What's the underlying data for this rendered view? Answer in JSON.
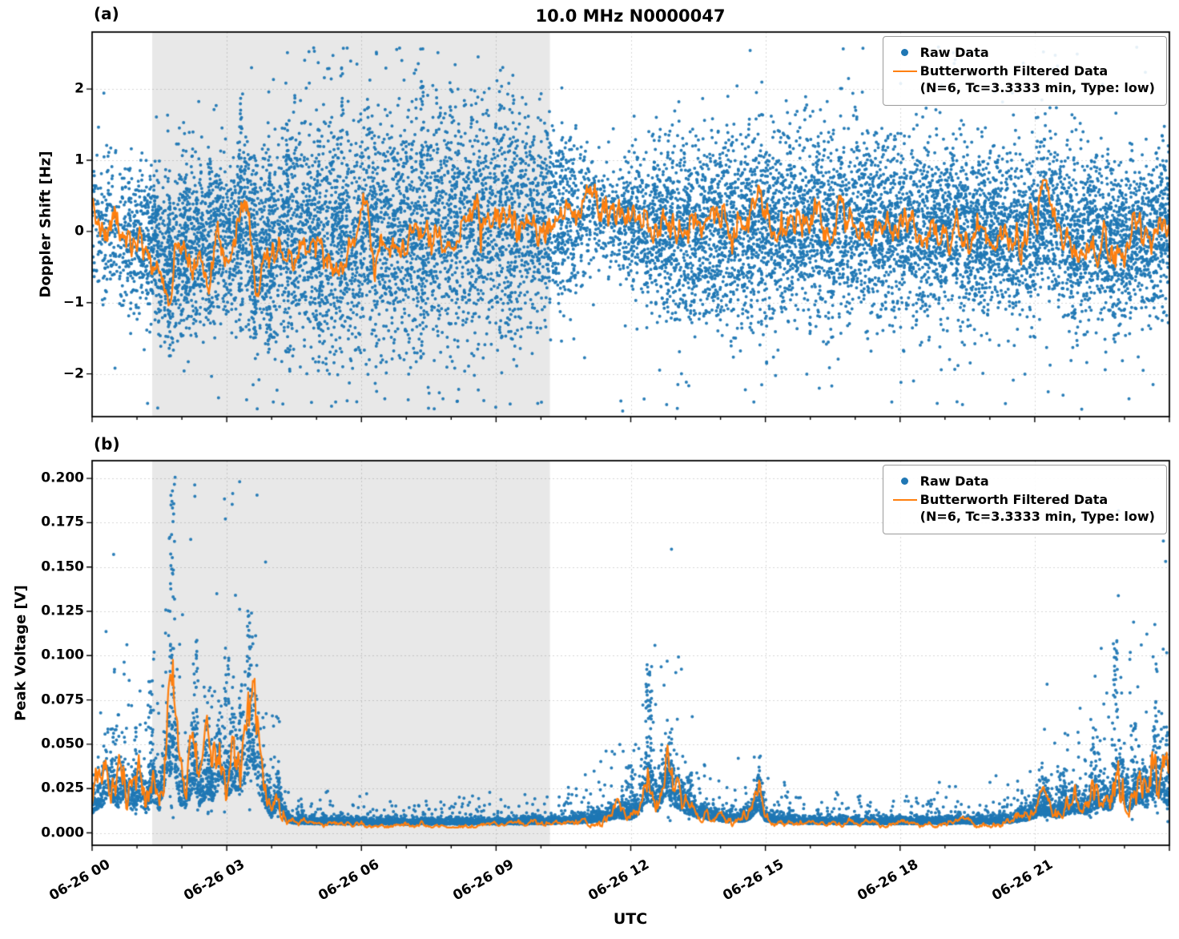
{
  "figure": {
    "title": "10.0 MHz N0000047",
    "xlabel": "UTC",
    "date": "06-26"
  },
  "legend": {
    "raw_label": "Raw Data",
    "filtered_label": "Butterworth Filtered Data",
    "filtered_sublabel": "(N=6, Tc=3.3333 min, Type: low)"
  },
  "colors": {
    "raw": "#1f77b4",
    "filtered": "#ff7f0e",
    "shade": "rgba(128,128,128,0.18)",
    "grid": "rgba(0,0,0,0.16)",
    "axis": "#000000"
  },
  "shade_region_hours": [
    1.34,
    10.2
  ],
  "xticks": {
    "hours": [
      0,
      3,
      6,
      9,
      12,
      15,
      18,
      21
    ],
    "labels": [
      "06-26 00",
      "06-26 03",
      "06-26 06",
      "06-26 09",
      "06-26 12",
      "06-26 15",
      "06-26 18",
      "06-26 21"
    ],
    "minor_step_hours": 1
  },
  "chart_data": [
    {
      "type": "scatter",
      "tag": "(a)",
      "title": "10.0 MHz N0000047",
      "ylabel": "Doppler Shift [Hz]",
      "xlabel": "UTC",
      "ylim": [
        -2.6,
        2.8
      ],
      "yticks": [
        -2,
        -1,
        0,
        1,
        2
      ],
      "ytick_labels": [
        "−2",
        "−1",
        "0",
        "1",
        "2"
      ],
      "xlim_hours": [
        0,
        24
      ],
      "legend_entries": [
        "Raw Data",
        "Butterworth Filtered Data (N=6, Tc=3.3333 min, Type: low)"
      ],
      "raw": {
        "name": "Raw Data",
        "count": 14000,
        "outlier_frac": 0.06,
        "center_scale": 0.5,
        "density": {
          "t": [
            0,
            0.5,
            1.0,
            1.5,
            2,
            3,
            4,
            5,
            8,
            10,
            10.8,
            11.3,
            12,
            12.5,
            24
          ],
          "v": [
            0.5,
            0.55,
            0.8,
            1,
            1,
            1,
            1,
            1,
            1,
            0.95,
            0.7,
            0.45,
            0.7,
            1,
            1
          ]
        },
        "spread": {
          "t": [
            0,
            0.8,
            1.5,
            2.2,
            3.0,
            3.6,
            4.2,
            5,
            6,
            7,
            8,
            9,
            10,
            10.7,
            11.2,
            11.7,
            12.2,
            13,
            14,
            15,
            16,
            17,
            18,
            19,
            20,
            21,
            22,
            23,
            24
          ],
          "v": [
            0.42,
            0.5,
            0.55,
            0.62,
            0.6,
            0.72,
            0.78,
            0.8,
            0.76,
            0.8,
            0.8,
            0.76,
            0.7,
            0.55,
            0.42,
            0.38,
            0.5,
            0.6,
            0.66,
            0.66,
            0.7,
            0.66,
            0.64,
            0.6,
            0.6,
            0.56,
            0.6,
            0.55,
            0.5
          ]
        },
        "streaks": [
          {
            "t": 1.72,
            "y0": -1.75,
            "y1": 0.4,
            "n": 45
          },
          {
            "t": 2.08,
            "y0": -1.3,
            "y1": 0.8,
            "n": 35
          },
          {
            "t": 2.62,
            "y0": -1.2,
            "y1": 1.1,
            "n": 35
          },
          {
            "t": 3.3,
            "y0": -1.4,
            "y1": 1.9,
            "n": 45
          },
          {
            "t": 3.62,
            "y0": -1.6,
            "y1": 0.9,
            "n": 40
          },
          {
            "t": 3.95,
            "y0": -1.8,
            "y1": 1.2,
            "n": 40
          },
          {
            "t": 4.35,
            "y0": -1.7,
            "y1": 1.5,
            "n": 35
          },
          {
            "t": 5.05,
            "y0": -1.9,
            "y1": 1.6,
            "n": 35
          },
          {
            "t": 5.55,
            "y0": -1.4,
            "y1": 2.3,
            "n": 30
          },
          {
            "t": 7.35,
            "y0": -1.9,
            "y1": 2.4,
            "n": 30
          },
          {
            "t": 8.0,
            "y0": -2.0,
            "y1": 2.2,
            "n": 25
          },
          {
            "t": 9.1,
            "y0": -1.6,
            "y1": 2.3,
            "n": 25
          }
        ],
        "extremes": [
          {
            "t": 11.78,
            "v": -2.38
          },
          {
            "t": 11.82,
            "v": -2.52
          },
          {
            "t": 7.32,
            "v": 2.56
          },
          {
            "t": 6.9,
            "v": 2.4
          },
          {
            "t": 8.6,
            "v": 2.45
          },
          {
            "t": 5.9,
            "v": 2.35
          },
          {
            "t": 13.05,
            "v": -2.15
          },
          {
            "t": 16.2,
            "v": -2.2
          },
          {
            "t": 21.3,
            "v": -2.25
          },
          {
            "t": 23.1,
            "v": -2.35
          },
          {
            "t": 14.8,
            "v": 1.95
          },
          {
            "t": 18.3,
            "v": -2.1
          }
        ]
      },
      "filtered": {
        "name": "Butterworth Filtered Data",
        "params": "(N=6, Tc=3.3333 min, Type: low)",
        "wiggle": 0.1,
        "t": [
          0,
          0.2,
          0.5,
          0.8,
          1.0,
          1.2,
          1.45,
          1.7,
          1.8,
          2.0,
          2.2,
          2.4,
          2.6,
          2.8,
          3.0,
          3.2,
          3.35,
          3.5,
          3.65,
          3.8,
          4.0,
          4.3,
          4.6,
          4.9,
          5.2,
          5.5,
          5.8,
          6.05,
          6.15,
          6.3,
          6.6,
          6.9,
          7.2,
          7.5,
          7.8,
          8.1,
          8.4,
          8.7,
          9.0,
          9.3,
          9.6,
          9.9,
          10.2,
          10.5,
          10.8,
          11.1,
          11.3,
          11.6,
          11.9,
          12.2,
          12.5,
          12.9,
          13.3,
          13.7,
          14.1,
          14.5,
          14.9,
          15.2,
          15.5,
          15.8,
          16.1,
          16.4,
          16.7,
          17.0,
          17.4,
          17.8,
          18.2,
          18.6,
          19.0,
          19.4,
          19.8,
          20.2,
          20.6,
          21.0,
          21.2,
          21.4,
          21.7,
          22.0,
          22.3,
          22.6,
          22.9,
          23.2,
          23.5,
          23.75,
          23.9,
          24
        ],
        "v": [
          0.15,
          -0.1,
          0.05,
          -0.2,
          -0.1,
          -0.35,
          -0.45,
          -1.0,
          -0.55,
          -0.3,
          -0.55,
          -0.25,
          -0.5,
          -0.2,
          -0.35,
          -0.1,
          0.35,
          0.25,
          -0.9,
          -0.4,
          -0.25,
          -0.15,
          -0.25,
          -0.15,
          -0.35,
          -0.2,
          -0.4,
          0.1,
          0.45,
          -0.25,
          -0.1,
          0.05,
          0.1,
          0.0,
          0.15,
          0.05,
          0.2,
          0.1,
          0.3,
          0.15,
          0.25,
          0.2,
          0.3,
          0.25,
          0.35,
          0.65,
          0.45,
          0.3,
          0.25,
          0.1,
          0.0,
          0.1,
          0.0,
          0.1,
          -0.05,
          0.05,
          0.25,
          0.1,
          0.3,
          0.15,
          0.25,
          0.1,
          0.2,
          0.1,
          0.15,
          0.05,
          0.1,
          0.0,
          0.1,
          0.05,
          -0.05,
          0.0,
          -0.1,
          0.0,
          0.55,
          0.25,
          -0.15,
          -0.35,
          -0.2,
          -0.4,
          -0.25,
          -0.1,
          -0.3,
          0.05,
          0.35,
          0.15
        ]
      }
    },
    {
      "type": "scatter",
      "tag": "(b)",
      "ylabel": "Peak Voltage [V]",
      "xlabel": "UTC",
      "ylim": [
        -0.007,
        0.21
      ],
      "yticks": [
        0,
        0.025,
        0.05,
        0.075,
        0.1,
        0.125,
        0.15,
        0.175,
        0.2
      ],
      "ytick_labels": [
        "0.000",
        "0.025",
        "0.050",
        "0.075",
        "0.100",
        "0.125",
        "0.150",
        "0.175",
        "0.200"
      ],
      "xlim_hours": [
        0,
        24
      ],
      "legend_entries": [
        "Raw Data",
        "Butterworth Filtered Data (N=6, Tc=3.3333 min, Type: low)"
      ],
      "raw": {
        "name": "Raw Data",
        "count": 9000,
        "clusters": [
          {
            "t": 1.8,
            "w": 0.1,
            "max": 0.202,
            "n": 18
          },
          {
            "t": 1.75,
            "w": 0.12,
            "max": 0.17,
            "n": 25
          },
          {
            "t": 1.3,
            "w": 0.12,
            "max": 0.088,
            "n": 25
          },
          {
            "t": 0.5,
            "w": 0.1,
            "max": 0.065,
            "n": 22
          },
          {
            "t": 0.95,
            "w": 0.08,
            "max": 0.06,
            "n": 18
          },
          {
            "t": 2.3,
            "w": 0.12,
            "max": 0.11,
            "n": 28
          },
          {
            "t": 2.62,
            "w": 0.1,
            "max": 0.082,
            "n": 22
          },
          {
            "t": 3.0,
            "w": 0.12,
            "max": 0.105,
            "n": 26
          },
          {
            "t": 3.5,
            "w": 0.1,
            "max": 0.14,
            "n": 32
          },
          {
            "t": 3.3,
            "w": 0.08,
            "max": 0.092,
            "n": 18
          },
          {
            "t": 4.15,
            "w": 0.06,
            "max": 0.032,
            "n": 12
          },
          {
            "t": 12.4,
            "w": 0.14,
            "max": 0.095,
            "n": 45
          },
          {
            "t": 12.0,
            "w": 0.2,
            "max": 0.038,
            "n": 35
          },
          {
            "t": 12.85,
            "w": 0.12,
            "max": 0.056,
            "n": 32
          },
          {
            "t": 13.3,
            "w": 0.12,
            "max": 0.034,
            "n": 22
          },
          {
            "t": 14.85,
            "w": 0.05,
            "max": 0.04,
            "n": 16
          },
          {
            "t": 21.2,
            "w": 0.2,
            "max": 0.032,
            "n": 25
          },
          {
            "t": 21.6,
            "w": 0.25,
            "max": 0.036,
            "n": 28
          },
          {
            "t": 22.3,
            "w": 0.18,
            "max": 0.05,
            "n": 28
          },
          {
            "t": 22.8,
            "w": 0.1,
            "max": 0.112,
            "n": 32
          },
          {
            "t": 23.2,
            "w": 0.12,
            "max": 0.062,
            "n": 26
          },
          {
            "t": 23.7,
            "w": 0.14,
            "max": 0.075,
            "n": 30
          },
          {
            "t": 23.95,
            "w": 0.06,
            "max": 0.068,
            "n": 16
          }
        ]
      },
      "filtered": {
        "name": "Butterworth Filtered Data",
        "params": "(N=6, Tc=3.3333 min, Type: low)",
        "wiggle": 0.16,
        "t": [
          0,
          0.2,
          0.4,
          0.55,
          0.7,
          0.9,
          1.05,
          1.2,
          1.35,
          1.5,
          1.65,
          1.8,
          1.95,
          2.1,
          2.25,
          2.4,
          2.55,
          2.7,
          2.85,
          3.0,
          3.15,
          3.3,
          3.45,
          3.55,
          3.7,
          3.85,
          4.0,
          4.15,
          4.3,
          4.5,
          5.0,
          6.0,
          7.0,
          8.0,
          9.0,
          10.0,
          10.5,
          11.0,
          11.4,
          11.7,
          12.0,
          12.2,
          12.4,
          12.6,
          12.8,
          13.0,
          13.2,
          13.5,
          13.8,
          14.2,
          14.6,
          14.85,
          15.0,
          15.3,
          15.7,
          16.2,
          17.0,
          18.0,
          19.0,
          20.0,
          20.5,
          20.9,
          21.2,
          21.5,
          21.8,
          22.1,
          22.4,
          22.7,
          22.85,
          23.1,
          23.3,
          23.5,
          23.7,
          23.9,
          24
        ],
        "v": [
          0.018,
          0.025,
          0.04,
          0.022,
          0.035,
          0.02,
          0.03,
          0.018,
          0.035,
          0.02,
          0.055,
          0.073,
          0.03,
          0.02,
          0.05,
          0.025,
          0.04,
          0.03,
          0.055,
          0.035,
          0.05,
          0.04,
          0.06,
          0.085,
          0.045,
          0.025,
          0.012,
          0.025,
          0.008,
          0.005,
          0.0045,
          0.004,
          0.004,
          0.004,
          0.0042,
          0.0045,
          0.005,
          0.006,
          0.008,
          0.012,
          0.01,
          0.016,
          0.035,
          0.02,
          0.04,
          0.025,
          0.018,
          0.012,
          0.009,
          0.007,
          0.008,
          0.022,
          0.008,
          0.006,
          0.005,
          0.0048,
          0.0045,
          0.0045,
          0.0048,
          0.005,
          0.006,
          0.01,
          0.016,
          0.012,
          0.018,
          0.015,
          0.025,
          0.02,
          0.045,
          0.02,
          0.03,
          0.024,
          0.04,
          0.03,
          0.026
        ]
      }
    }
  ]
}
